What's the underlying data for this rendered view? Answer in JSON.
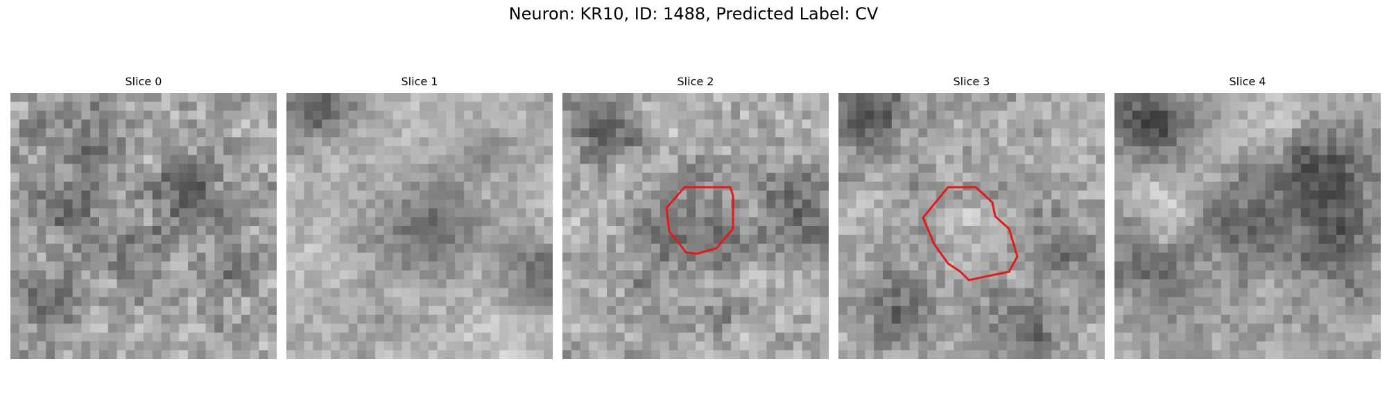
{
  "figure": {
    "title": "Neuron: KR10, ID: 1488, Predicted Label: CV"
  },
  "slices": [
    {
      "label": "Slice 0",
      "has_contour": false
    },
    {
      "label": "Slice 1",
      "has_contour": false
    },
    {
      "label": "Slice 2",
      "has_contour": true
    },
    {
      "label": "Slice 3",
      "has_contour": true
    },
    {
      "label": "Slice 4",
      "has_contour": false
    }
  ],
  "colors": {
    "contour": "#e31a1c",
    "colormap": "gray"
  }
}
